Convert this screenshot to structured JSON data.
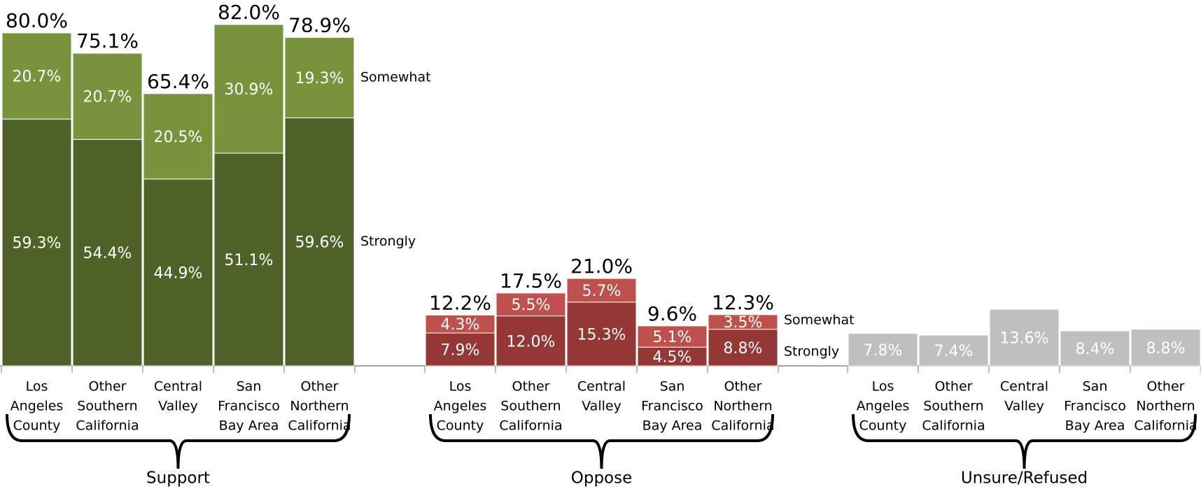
{
  "chart_data": {
    "type": "stacked-bar",
    "groups": [
      {
        "name": "Support",
        "categories": [
          [
            "Los",
            "Angeles",
            "County"
          ],
          [
            "Other",
            "Southern",
            "California"
          ],
          [
            "Central",
            "Valley"
          ],
          [
            "San",
            "Francisco",
            "Bay Area"
          ],
          [
            "Other",
            "Northern",
            "California"
          ]
        ],
        "series": [
          {
            "name": "Strongly",
            "color": "#4f6228",
            "values": [
              59.3,
              54.4,
              44.9,
              51.1,
              59.6
            ],
            "value_labels": [
              "59.3%",
              "54.4%",
              "44.9%",
              "51.1%",
              "59.6%"
            ]
          },
          {
            "name": "Somewhat",
            "color": "#77933c",
            "values": [
              20.7,
              20.7,
              20.5,
              30.9,
              19.3
            ],
            "value_labels": [
              "20.7%",
              "20.7%",
              "20.5%",
              "30.9%",
              "19.3%"
            ]
          }
        ],
        "totals": [
          80.0,
          75.1,
          65.4,
          82.0,
          78.9
        ],
        "total_labels": [
          "80.0%",
          "75.1%",
          "65.4%",
          "82.0%",
          "78.9%"
        ]
      },
      {
        "name": "Oppose",
        "categories": [
          [
            "Los",
            "Angeles",
            "County"
          ],
          [
            "Other",
            "Southern",
            "California"
          ],
          [
            "Central",
            "Valley"
          ],
          [
            "San",
            "Francisco",
            "Bay Area"
          ],
          [
            "Other",
            "Northern",
            "California"
          ]
        ],
        "series": [
          {
            "name": "Strongly",
            "color": "#953735",
            "values": [
              7.9,
              12.0,
              15.3,
              4.5,
              8.8
            ],
            "value_labels": [
              "7.9%",
              "12.0%",
              "15.3%",
              "4.5%",
              "8.8%"
            ]
          },
          {
            "name": "Somewhat",
            "color": "#c0504d",
            "values": [
              4.3,
              5.5,
              5.7,
              5.1,
              3.5
            ],
            "value_labels": [
              "4.3%",
              "5.5%",
              "5.7%",
              "5.1%",
              "3.5%"
            ]
          }
        ],
        "totals": [
          12.2,
          17.5,
          21.0,
          9.6,
          12.3
        ],
        "total_labels": [
          "12.2%",
          "17.5%",
          "21.0%",
          "9.6%",
          "12.3%"
        ]
      },
      {
        "name": "Unsure/Refused",
        "categories": [
          [
            "Los",
            "Angeles",
            "County"
          ],
          [
            "Other",
            "Southern",
            "California"
          ],
          [
            "Central",
            "Valley"
          ],
          [
            "San",
            "Francisco",
            "Bay Area"
          ],
          [
            "Other",
            "Northern",
            "California"
          ]
        ],
        "series": [
          {
            "color": "#bfbfbf",
            "values": [
              7.8,
              7.4,
              13.6,
              8.4,
              8.8
            ],
            "value_labels": [
              "7.8%",
              "7.4%",
              "13.6%",
              "8.4%",
              "8.8%"
            ]
          }
        ]
      }
    ]
  }
}
